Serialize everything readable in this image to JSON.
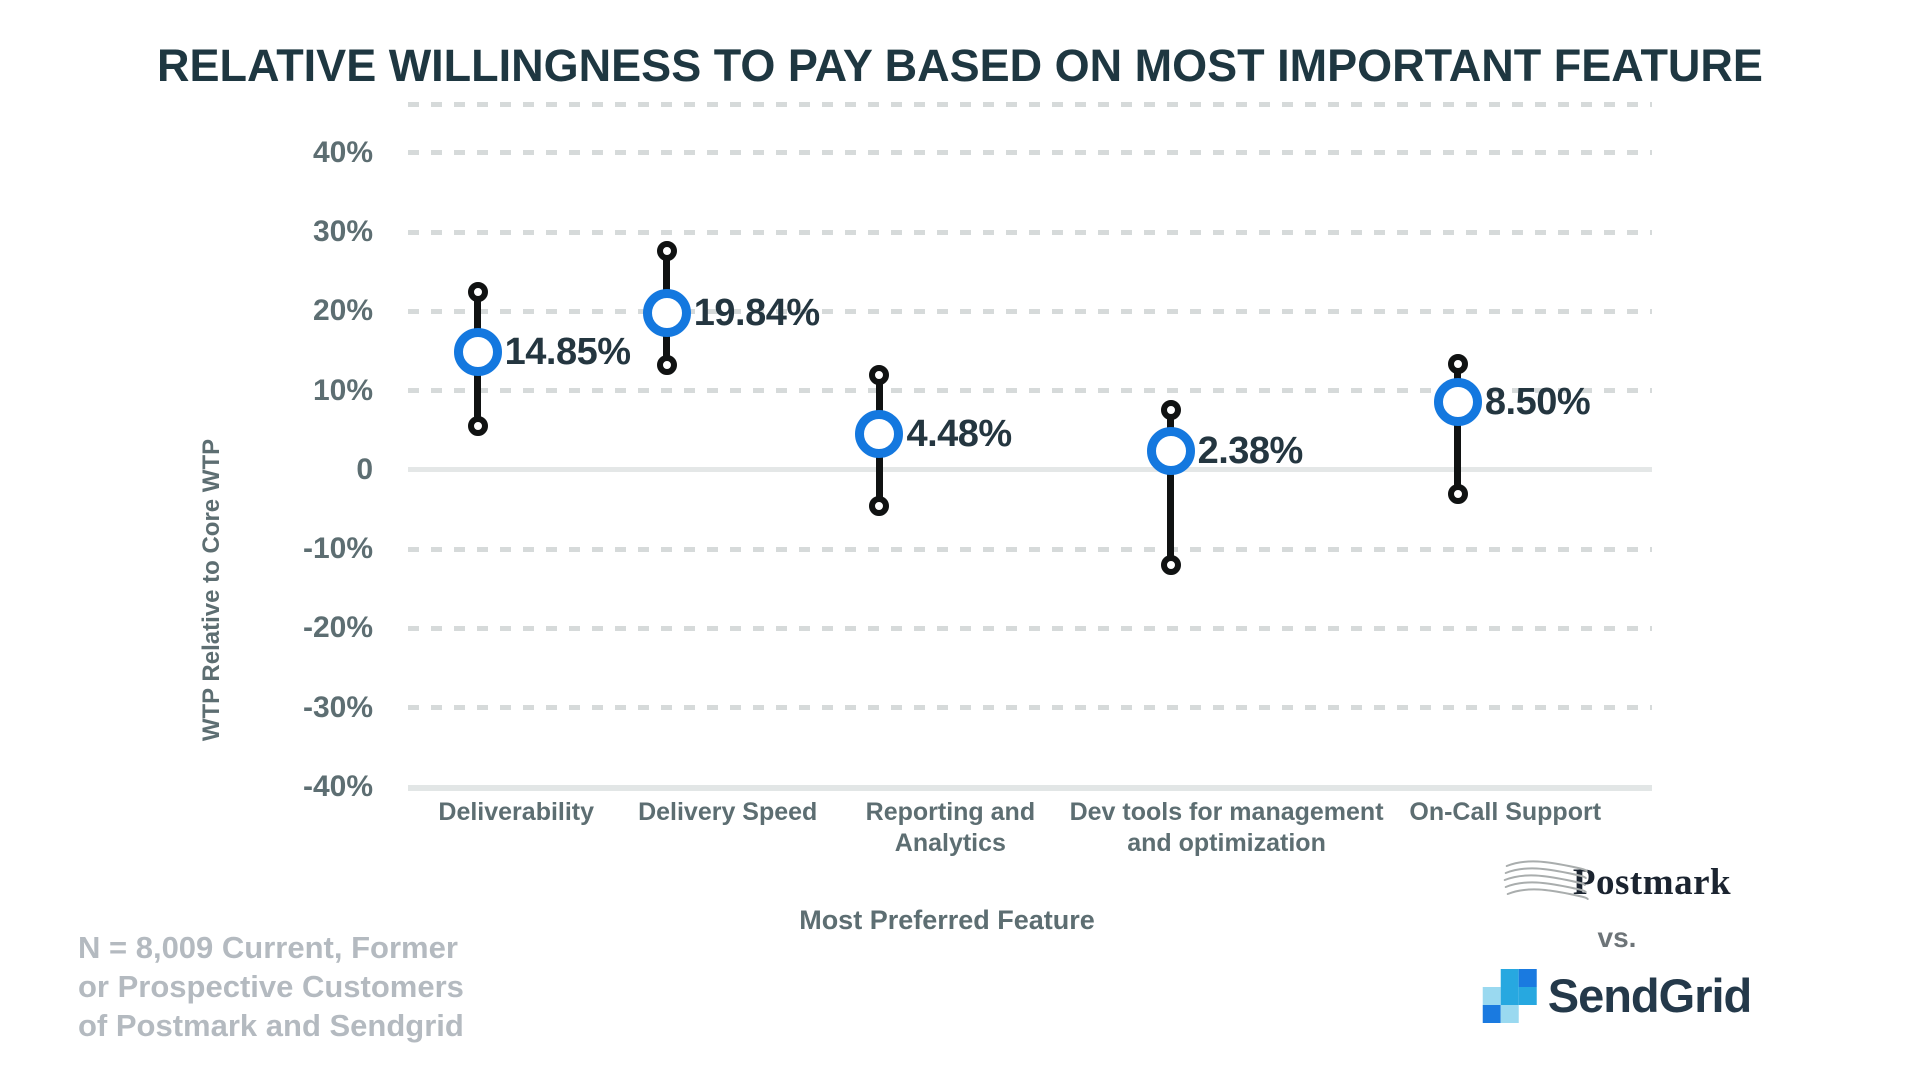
{
  "title": "RELATIVE WILLINGNESS TO PAY BASED ON MOST IMPORTANT FEATURE",
  "chart_data": {
    "type": "scatter",
    "variant": "dot_markers_with_vertical_range_bars",
    "title": "RELATIVE WILLINGNESS TO PAY BASED ON MOST IMPORTANT FEATURE",
    "xlabel": "Most Preferred Feature",
    "ylabel": "WTP Relative to Core WTP",
    "ylim": [
      -40,
      46.4
    ],
    "grid": {
      "horizontal": "dashed",
      "zero_line": "solid",
      "top_border": "dashed",
      "bottom_axis": "solid"
    },
    "legend": "none",
    "y_ticks": [
      {
        "value": 40,
        "label": "40%"
      },
      {
        "value": 30,
        "label": "30%"
      },
      {
        "value": 20,
        "label": "20%"
      },
      {
        "value": 10,
        "label": "10%"
      },
      {
        "value": 0,
        "label": "0"
      },
      {
        "value": -10,
        "label": "-10%"
      },
      {
        "value": -20,
        "label": "-20%"
      },
      {
        "value": -30,
        "label": "-30%"
      },
      {
        "value": -40,
        "label": "-40%"
      }
    ],
    "points": [
      {
        "category_lines": [
          "Deliverability"
        ],
        "value": 14.85,
        "value_label": "14.85%",
        "range_high": 22.4,
        "range_low": 5.5,
        "x_pct": 5.6,
        "label_x_pct": 8.7
      },
      {
        "category_lines": [
          "Delivery Speed"
        ],
        "value": 19.84,
        "value_label": "19.84%",
        "range_high": 27.6,
        "range_low": 13.2,
        "x_pct": 20.8,
        "label_x_pct": 25.7
      },
      {
        "category_lines": [
          "Reporting and",
          "Analytics"
        ],
        "value": 4.48,
        "value_label": "4.48%",
        "range_high": 12.0,
        "range_low": -4.5,
        "x_pct": 37.9,
        "label_x_pct": 43.6
      },
      {
        "category_lines": [
          "Dev tools for management",
          "and optimization"
        ],
        "value": 2.38,
        "value_label": "2.38%",
        "range_high": 7.5,
        "range_low": -12.0,
        "x_pct": 61.3,
        "label_x_pct": 65.8
      },
      {
        "category_lines": [
          "On-Call Support"
        ],
        "value": 8.5,
        "value_label": "8.50%",
        "range_high": 13.4,
        "range_low": -3.0,
        "x_pct": 84.4,
        "label_x_pct": 88.2
      }
    ]
  },
  "footnote": {
    "lines": [
      "N = 8,009 Current, Former",
      "or Prospective Customers",
      "of Postmark and Sendgrid"
    ]
  },
  "branding": {
    "postmark_label": "Postmark",
    "vs_label": "vs.",
    "sendgrid_label": "SendGrid"
  },
  "colors": {
    "title": "#1E3741",
    "axis_text": "#5D6E72",
    "value_label": "#243640",
    "marker_blue": "#1478DF",
    "bar_black": "#101212",
    "grid_dash": "#D6DADA",
    "zero_line": "#E4E7E7",
    "footnote": "#B4BAC0",
    "vs_text": "#6D7478",
    "postmark_text": "#1B2430",
    "sendgrid_navy": "#24394A",
    "sendgrid_blue_strong": "#1A7AE0",
    "sendgrid_blue_mid": "#27A8E0",
    "sendgrid_blue_light": "#9AD9F0"
  }
}
